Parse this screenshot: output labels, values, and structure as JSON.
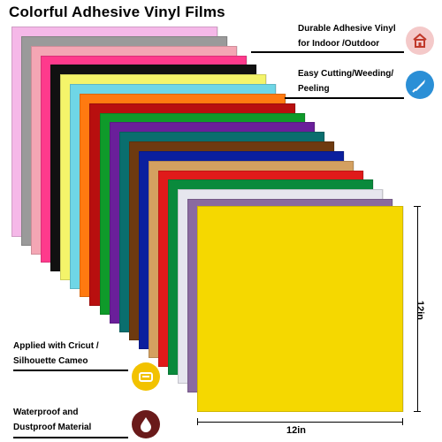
{
  "title": "Colorful Adhesive Vinyl Films",
  "features": {
    "durable_line1": "Durable Adhesive Vinyl",
    "durable_line2": "for Indoor /Outdoor",
    "cutting_line1": "Easy Cutting/Weeding/",
    "cutting_line2": "Peeling",
    "cricut_line1": "Applied with Cricut /",
    "cricut_line2": "Silhouette Cameo",
    "waterproof_line1": "Waterproof and",
    "waterproof_line2": "Dustproof Material"
  },
  "dimensions": {
    "height_label": "12in",
    "width_label": "12in"
  },
  "colors": {
    "front_sheet": "#f5d800",
    "badge_durable": "#f4c9c9",
    "badge_cutting": "#2b8fd6",
    "badge_cricut": "#f2c200",
    "badge_waterproof": "#6a1a1a",
    "sheet_stack": [
      "#f5b8e8",
      "#9a9a9a",
      "#f4a6b4",
      "#ff3a8c",
      "#111111",
      "#f4f46a",
      "#6fd6e6",
      "#ff7a10",
      "#b80f0f",
      "#0f9a2a",
      "#6a1f9a",
      "#0a6e6e",
      "#6e3a10",
      "#0b1f9e",
      "#d4a060",
      "#e01a1a",
      "#0a8a3c",
      "#e6e6ee",
      "#8a6aa0"
    ]
  },
  "icons": {
    "durable": "house-icon",
    "cutting": "craft-knife-icon",
    "cricut": "cutting-machine-icon",
    "waterproof": "water-drop-icon"
  }
}
